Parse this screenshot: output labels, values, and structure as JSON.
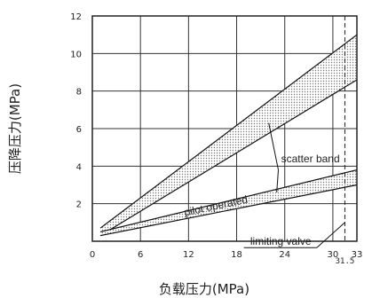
{
  "chart_data": {
    "type": "area",
    "title": "",
    "xlabel": "负载压力(MPa)",
    "ylabel": "压降压力(MPa)",
    "xlim": [
      0,
      33
    ],
    "ylim": [
      0,
      12
    ],
    "xticks": [
      0,
      6,
      12,
      18,
      24,
      30,
      33
    ],
    "yticks": [
      2,
      4,
      6,
      8,
      10,
      12
    ],
    "xtick_labels": [
      "0",
      "6",
      "12",
      "18",
      "24",
      "30",
      "33"
    ],
    "ytick_labels": [
      "2",
      "4",
      "6",
      "8",
      "10",
      "12"
    ],
    "grid": true,
    "reference_line": {
      "x": 31.5,
      "label": "31.5",
      "style": "dashed"
    },
    "series": [
      {
        "name": "pilot operated",
        "x": [
          1,
          33
        ],
        "lower": [
          0.3,
          8.6
        ],
        "upper": [
          0.7,
          11.0
        ]
      },
      {
        "name": "limiting valve",
        "x": [
          1,
          33
        ],
        "lower": [
          0.3,
          3.0
        ],
        "upper": [
          0.5,
          3.8
        ]
      }
    ],
    "annotations": [
      {
        "text": "scatter band",
        "x": 27.2,
        "y": 4.2
      },
      {
        "text": "pilot operated",
        "x": 15.5,
        "y": 1.7,
        "angle": -12
      },
      {
        "text": "limiting valve",
        "x": 23.5,
        "y": -0.2
      }
    ]
  }
}
